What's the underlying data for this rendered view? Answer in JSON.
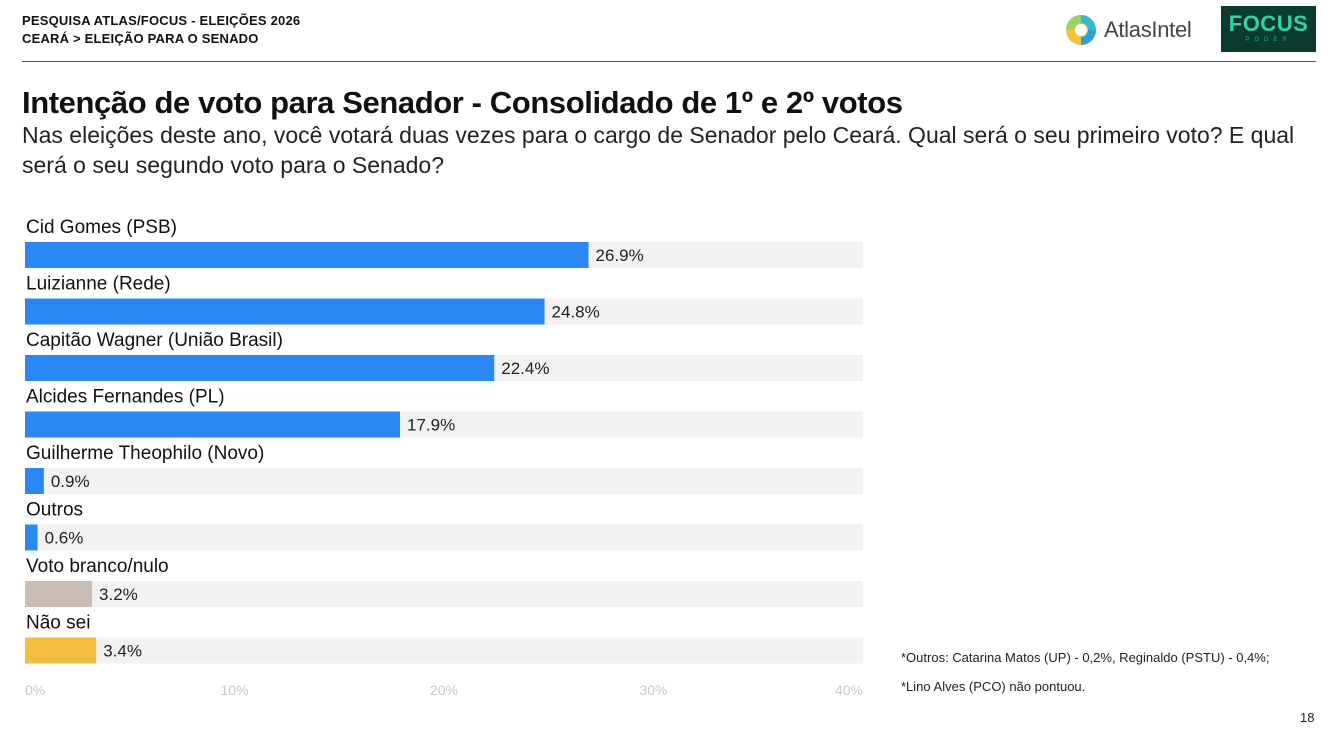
{
  "header": {
    "line1": "PESQUISA ATLAS/FOCUS - ELEIÇÕES 2026",
    "line2": "CEARÁ > ELEIÇÃO PARA O SENADO"
  },
  "logos": {
    "atlas_text": "AtlasIntel",
    "focus_text": "FOCUS",
    "focus_sub": "PODER"
  },
  "footnotes": [
    "*Outros: Catarina Matos (UP) - 0,2%, Reginaldo (PSTU) - 0,4%;",
    "*Lino Alves (PCO) não pontuou."
  ],
  "page_number": "18",
  "colors": {
    "candidate": "#2a87f4",
    "blank_null": "#c9bcb5",
    "dont_know": "#f3bd3f",
    "track": "#f3f2f1",
    "tick": "#c8c8c8"
  },
  "chart_data": {
    "type": "bar",
    "orientation": "horizontal",
    "title": "Intenção de voto para Senador - Consolidado de 1º e 2º votos",
    "subtitle": "Nas eleições deste ano, você votará duas vezes para o cargo de Senador pelo Ceará. Qual será o seu primeiro voto? E qual será o seu segundo voto para o Senado?",
    "categories": [
      "Cid Gomes (PSB)",
      "Luizianne (Rede)",
      "Capitão Wagner (União Brasil)",
      "Alcides Fernandes (PL)",
      "Guilherme Theophilo (Novo)",
      "Outros",
      "Voto branco/nulo",
      "Não sei"
    ],
    "values": [
      26.9,
      24.8,
      22.4,
      17.9,
      0.9,
      0.6,
      3.2,
      3.4
    ],
    "value_labels": [
      "26.9%",
      "24.8%",
      "22.4%",
      "17.9%",
      "0.9%",
      "0.6%",
      "3.2%",
      "3.4%"
    ],
    "bar_colors": [
      "#2a87f4",
      "#2a87f4",
      "#2a87f4",
      "#2a87f4",
      "#2a87f4",
      "#2a87f4",
      "#c9bcb5",
      "#f3bd3f"
    ],
    "xlim": [
      0,
      40
    ],
    "xticks": [
      0,
      10,
      20,
      30,
      40
    ],
    "xtick_labels": [
      "0%",
      "10%",
      "20%",
      "30%",
      "40%"
    ],
    "grid": false,
    "legend": "none"
  }
}
